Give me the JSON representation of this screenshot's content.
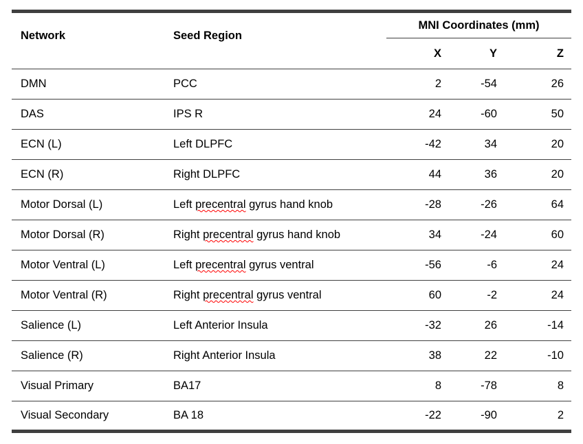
{
  "table": {
    "headers": {
      "network": "Network",
      "seed_region": "Seed Region",
      "mni_group": "MNI Coordinates (mm)",
      "x": "X",
      "y": "Y",
      "z": "Z"
    },
    "rows": [
      {
        "network": "DMN",
        "seed_pre": "PCC",
        "seed_miss": "",
        "seed_post": "",
        "x": "2",
        "y": "-54",
        "z": "26"
      },
      {
        "network": "DAS",
        "seed_pre": "IPS R",
        "seed_miss": "",
        "seed_post": "",
        "x": "24",
        "y": "-60",
        "z": "50"
      },
      {
        "network": "ECN (L)",
        "seed_pre": "Left DLPFC",
        "seed_miss": "",
        "seed_post": "",
        "x": "-42",
        "y": "34",
        "z": "20"
      },
      {
        "network": "ECN (R)",
        "seed_pre": "Right DLPFC",
        "seed_miss": "",
        "seed_post": "",
        "x": "44",
        "y": "36",
        "z": "20"
      },
      {
        "network": "Motor Dorsal (L)",
        "seed_pre": "Left ",
        "seed_miss": "precentral",
        "seed_post": " gyrus hand knob",
        "x": "-28",
        "y": "-26",
        "z": "64"
      },
      {
        "network": "Motor Dorsal (R)",
        "seed_pre": "Right ",
        "seed_miss": "precentral",
        "seed_post": " gyrus hand knob",
        "x": "34",
        "y": "-24",
        "z": "60"
      },
      {
        "network": "Motor Ventral (L)",
        "seed_pre": "Left ",
        "seed_miss": "precentral",
        "seed_post": " gyrus ventral",
        "x": "-56",
        "y": "-6",
        "z": "24"
      },
      {
        "network": "Motor Ventral (R)",
        "seed_pre": "Right ",
        "seed_miss": "precentral",
        "seed_post": " gyrus ventral",
        "x": "60",
        "y": "-2",
        "z": "24"
      },
      {
        "network": "Salience (L)",
        "seed_pre": "Left Anterior Insula",
        "seed_miss": "",
        "seed_post": "",
        "x": "-32",
        "y": "26",
        "z": "-14"
      },
      {
        "network": "Salience (R)",
        "seed_pre": "Right Anterior Insula",
        "seed_miss": "",
        "seed_post": "",
        "x": "38",
        "y": "22",
        "z": "-10"
      },
      {
        "network": "Visual Primary",
        "seed_pre": "BA17",
        "seed_miss": "",
        "seed_post": "",
        "x": "8",
        "y": "-78",
        "z": "8"
      },
      {
        "network": "Visual Secondary",
        "seed_pre": "BA 18",
        "seed_miss": "",
        "seed_post": "",
        "x": "-22",
        "y": "-90",
        "z": "2"
      }
    ]
  },
  "colors": {
    "border": "#3f3f3f",
    "text": "#000000",
    "spellcheck_underline": "#ff0000",
    "background": "#ffffff"
  }
}
